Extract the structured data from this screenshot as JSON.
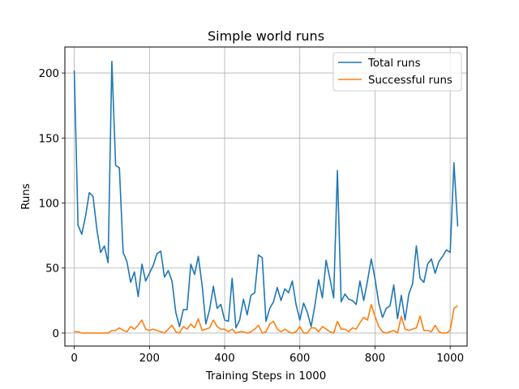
{
  "chart_data": {
    "type": "line",
    "title": "Simple world runs",
    "xlabel": "Training Steps in 1000",
    "ylabel": "Runs",
    "xlim": [
      -25,
      1045
    ],
    "ylim": [
      -10,
      220
    ],
    "xticks": [
      0,
      200,
      400,
      600,
      800,
      1000
    ],
    "yticks": [
      0,
      50,
      100,
      150,
      200
    ],
    "grid": true,
    "legend_position": "top-right",
    "x": [
      0,
      10,
      20,
      30,
      40,
      50,
      60,
      70,
      80,
      90,
      100,
      110,
      120,
      130,
      140,
      150,
      160,
      170,
      180,
      190,
      200,
      210,
      220,
      230,
      240,
      250,
      260,
      270,
      280,
      290,
      300,
      310,
      320,
      330,
      340,
      350,
      360,
      370,
      380,
      390,
      400,
      410,
      420,
      430,
      440,
      450,
      460,
      470,
      480,
      490,
      500,
      510,
      520,
      530,
      540,
      550,
      560,
      570,
      580,
      590,
      600,
      610,
      620,
      630,
      640,
      650,
      660,
      670,
      680,
      690,
      700,
      710,
      720,
      730,
      740,
      750,
      760,
      770,
      780,
      790,
      800,
      810,
      820,
      830,
      840,
      850,
      860,
      870,
      880,
      890,
      900,
      910,
      920,
      930,
      940,
      950,
      960,
      970,
      980,
      990,
      1000,
      1010,
      1020
    ],
    "series": [
      {
        "name": "Total runs",
        "color": "#1f77b4",
        "values": [
          202,
          83,
          76,
          90,
          108,
          105,
          80,
          62,
          67,
          54,
          209,
          129,
          127,
          62,
          55,
          39,
          47,
          28,
          53,
          40,
          46,
          52,
          61,
          63,
          43,
          48,
          40,
          16,
          5,
          18,
          18,
          53,
          45,
          59,
          37,
          7,
          18,
          36,
          19,
          22,
          10,
          9,
          42,
          4,
          10,
          26,
          14,
          29,
          31,
          60,
          58,
          9,
          19,
          24,
          35,
          25,
          34,
          31,
          40,
          22,
          10,
          23,
          16,
          5,
          21,
          41,
          27,
          56,
          42,
          27,
          125,
          24,
          30,
          26,
          25,
          22,
          40,
          25,
          40,
          57,
          42,
          23,
          12,
          19,
          21,
          37,
          11,
          29,
          10,
          30,
          38,
          67,
          42,
          39,
          53,
          57,
          46,
          55,
          59,
          64,
          62,
          131,
          82
        ]
      },
      {
        "name": "Successful runs",
        "color": "#ff7f0e",
        "values": [
          1,
          1,
          0,
          0,
          0,
          0,
          0,
          0,
          0,
          0,
          2,
          2,
          4,
          2,
          1,
          5,
          3,
          6,
          10,
          3,
          2,
          3,
          2,
          1,
          0,
          3,
          6,
          1,
          0,
          5,
          3,
          7,
          4,
          11,
          2,
          3,
          4,
          10,
          5,
          3,
          3,
          1,
          3,
          0,
          1,
          1,
          0,
          1,
          3,
          6,
          0,
          1,
          7,
          9,
          3,
          1,
          3,
          1,
          0,
          1,
          5,
          0,
          0,
          4,
          4,
          1,
          5,
          3,
          1,
          0,
          9,
          3,
          3,
          1,
          4,
          3,
          8,
          12,
          10,
          22,
          13,
          5,
          1,
          0,
          1,
          2,
          0,
          13,
          3,
          2,
          3,
          4,
          13,
          2,
          2,
          1,
          6,
          1,
          0,
          0,
          2,
          19,
          21
        ]
      }
    ]
  }
}
